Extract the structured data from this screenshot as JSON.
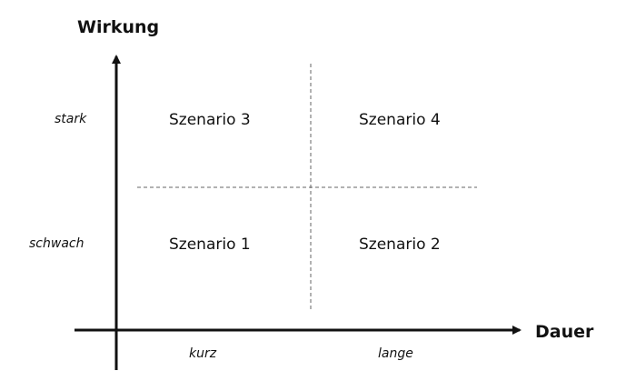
{
  "axes": {
    "y_title": "Wirkung",
    "x_title": "Dauer"
  },
  "y_levels": {
    "high": "stark",
    "low": "schwach"
  },
  "x_levels": {
    "short": "kurz",
    "long": "lange"
  },
  "scenarios": {
    "top_left": "Szenario 3",
    "top_right": "Szenario 4",
    "bottom_left": "Szenario 1",
    "bottom_right": "Szenario 2"
  }
}
